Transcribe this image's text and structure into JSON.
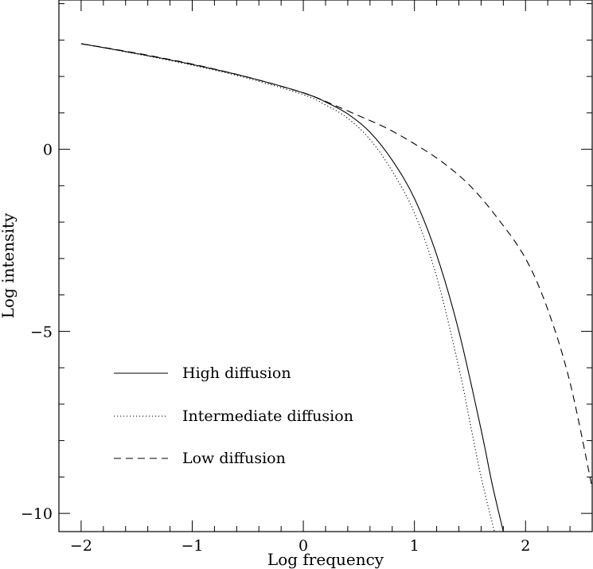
{
  "chart_data": {
    "type": "line",
    "xlabel": "Log frequency",
    "ylabel": "Log intensity",
    "xlim": [
      -2.2,
      2.6
    ],
    "ylim": [
      -10.5,
      4.1
    ],
    "xticks_major": [
      -2,
      -1,
      0,
      1,
      2
    ],
    "xtick_labels": [
      "−2",
      "−1",
      "0",
      "1",
      "2"
    ],
    "xticks_minor_step": 0.2,
    "yticks_major": [
      0,
      -5,
      -10
    ],
    "ytick_labels": [
      "0",
      "−5",
      "−10"
    ],
    "yticks_minor_step": 1,
    "grid": false,
    "legend_position": "bottom-left",
    "series": [
      {
        "name": "High diffusion",
        "dash": "solid",
        "color": "#000000",
        "x": [
          -2.0,
          -1.5,
          -1.0,
          -0.5,
          0.0,
          0.2,
          0.4,
          0.6,
          0.8,
          1.0,
          1.2,
          1.4,
          1.6,
          1.7,
          1.8
        ],
        "y": [
          2.9,
          2.63,
          2.33,
          1.98,
          1.55,
          1.3,
          0.97,
          0.47,
          -0.3,
          -1.35,
          -2.9,
          -5.0,
          -7.7,
          -9.2,
          -10.5
        ]
      },
      {
        "name": "Intermediate diffusion",
        "dash": "dotted",
        "color": "#000000",
        "x": [
          -2.0,
          -1.5,
          -1.0,
          -0.5,
          0.0,
          0.2,
          0.4,
          0.6,
          0.8,
          1.0,
          1.2,
          1.4,
          1.5,
          1.6,
          1.72
        ],
        "y": [
          2.9,
          2.62,
          2.31,
          1.95,
          1.5,
          1.22,
          0.85,
          0.27,
          -0.6,
          -1.75,
          -3.5,
          -6.0,
          -7.5,
          -9.0,
          -10.5
        ]
      },
      {
        "name": "Low diffusion",
        "dash": "dashed",
        "color": "#000000",
        "x": [
          -2.0,
          -1.5,
          -1.0,
          -0.5,
          0.0,
          0.25,
          0.5,
          0.75,
          1.0,
          1.25,
          1.5,
          1.75,
          2.0,
          2.2,
          2.4,
          2.6
        ],
        "y": [
          2.9,
          2.64,
          2.34,
          1.98,
          1.55,
          1.25,
          0.92,
          0.58,
          0.15,
          -0.35,
          -1.0,
          -1.9,
          -3.0,
          -4.4,
          -6.4,
          -9.3
        ]
      }
    ]
  }
}
